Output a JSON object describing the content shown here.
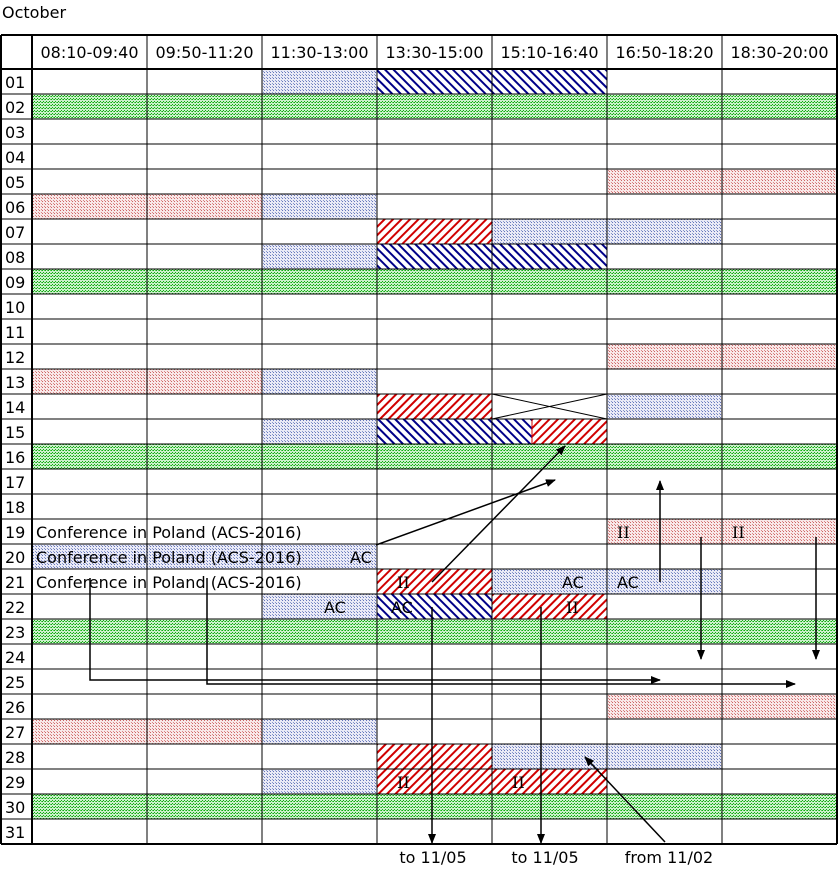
{
  "month": "October",
  "time_slots": [
    "08:10-09:40",
    "09:50-11:20",
    "11:30-13:00",
    "13:30-15:00",
    "15:10-16:40",
    "16:50-18:20",
    "18:30-20:00"
  ],
  "days": [
    "01",
    "02",
    "03",
    "04",
    "05",
    "06",
    "07",
    "08",
    "09",
    "10",
    "11",
    "12",
    "13",
    "14",
    "15",
    "16",
    "17",
    "18",
    "19",
    "20",
    "21",
    "22",
    "23",
    "24",
    "25",
    "26",
    "27",
    "28",
    "29",
    "30",
    "31"
  ],
  "legend_colors": {
    "weekend_green": "#00aa00",
    "pink_dots": "#cc6666",
    "blue_dots": "#6677bb",
    "red_hatch": "#d00000",
    "blue_hatch": "#000088"
  },
  "fills": [
    {
      "day": "01",
      "slots": [
        2
      ],
      "style": "bluedot"
    },
    {
      "day": "01",
      "slots": [
        3,
        4
      ],
      "style": "bluehatch"
    },
    {
      "day": "02",
      "slots": [
        0,
        1,
        2,
        3,
        4,
        5,
        6
      ],
      "style": "green"
    },
    {
      "day": "05",
      "slots": [
        5,
        6
      ],
      "style": "pinkdot"
    },
    {
      "day": "06",
      "slots": [
        0,
        1
      ],
      "style": "pinkdot"
    },
    {
      "day": "06",
      "slots": [
        2
      ],
      "style": "bluedot"
    },
    {
      "day": "07",
      "slots": [
        3
      ],
      "style": "redhatch"
    },
    {
      "day": "07",
      "slots": [
        4,
        5
      ],
      "style": "bluedot"
    },
    {
      "day": "08",
      "slots": [
        2
      ],
      "style": "bluedot"
    },
    {
      "day": "08",
      "slots": [
        3,
        4
      ],
      "style": "bluehatch"
    },
    {
      "day": "09",
      "slots": [
        0,
        1,
        2,
        3,
        4,
        5,
        6
      ],
      "style": "green"
    },
    {
      "day": "12",
      "slots": [
        5,
        6
      ],
      "style": "pinkdot"
    },
    {
      "day": "13",
      "slots": [
        0,
        1
      ],
      "style": "pinkdot"
    },
    {
      "day": "13",
      "slots": [
        2
      ],
      "style": "bluedot"
    },
    {
      "day": "14",
      "slots": [
        3
      ],
      "style": "redhatch"
    },
    {
      "day": "14",
      "slots": [
        5
      ],
      "style": "bluedot"
    },
    {
      "day": "15",
      "slots": [
        2
      ],
      "style": "bluedot"
    },
    {
      "day": "15",
      "slots": [
        3
      ],
      "style": "bluehatch"
    },
    {
      "day": "16",
      "slots": [
        0,
        1,
        2,
        3,
        4,
        5,
        6
      ],
      "style": "green"
    },
    {
      "day": "19",
      "slots": [
        5,
        6
      ],
      "style": "pinkdot"
    },
    {
      "day": "20",
      "slots": [
        0,
        1,
        2
      ],
      "style": "bluedot"
    },
    {
      "day": "21",
      "slots": [
        3
      ],
      "style": "redhatch"
    },
    {
      "day": "21",
      "slots": [
        4,
        5
      ],
      "style": "bluedot"
    },
    {
      "day": "22",
      "slots": [
        2
      ],
      "style": "bluedot"
    },
    {
      "day": "22",
      "slots": [
        3
      ],
      "style": "bluehatch"
    },
    {
      "day": "22",
      "slots": [
        4
      ],
      "style": "redhatch"
    },
    {
      "day": "23",
      "slots": [
        0,
        1,
        2,
        3,
        4,
        5,
        6
      ],
      "style": "green"
    },
    {
      "day": "26",
      "slots": [
        5,
        6
      ],
      "style": "pinkdot"
    },
    {
      "day": "27",
      "slots": [
        0,
        1
      ],
      "style": "pinkdot"
    },
    {
      "day": "27",
      "slots": [
        2
      ],
      "style": "bluedot"
    },
    {
      "day": "28",
      "slots": [
        3
      ],
      "style": "redhatch"
    },
    {
      "day": "28",
      "slots": [
        4,
        5
      ],
      "style": "bluedot"
    },
    {
      "day": "29",
      "slots": [
        2
      ],
      "style": "bluedot"
    },
    {
      "day": "29",
      "slots": [
        3,
        4
      ],
      "style": "redhatch"
    },
    {
      "day": "30",
      "slots": [
        0,
        1,
        2,
        3,
        4,
        5,
        6
      ],
      "style": "green"
    }
  ],
  "cell_texts": [
    {
      "day": "19",
      "slot": 0,
      "text": "Conference in Poland (ACS-2016)",
      "font": "sans"
    },
    {
      "day": "20",
      "slot": 0,
      "text": "Conference in Poland (ACS-2016)",
      "font": "sans"
    },
    {
      "day": "20",
      "slot": 2,
      "text": "AC",
      "font": "sans"
    },
    {
      "day": "21",
      "slot": 0,
      "text": "Conference in Poland (ACS-2016)",
      "font": "sans"
    },
    {
      "day": "19",
      "slot": 5,
      "text": "II",
      "font": "serif"
    },
    {
      "day": "19",
      "slot": 6,
      "text": "II",
      "font": "serif"
    },
    {
      "day": "21",
      "slot": 3,
      "text": "II",
      "font": "serif"
    },
    {
      "day": "21",
      "slot": 4,
      "text": "AC",
      "font": "sans"
    },
    {
      "day": "21",
      "slot": 5,
      "text": "AC",
      "font": "sans"
    },
    {
      "day": "22",
      "slot": 2,
      "text": "AC",
      "font": "sans"
    },
    {
      "day": "22",
      "slot": 3,
      "text": "AC",
      "font": "sans"
    },
    {
      "day": "22",
      "slot": 4,
      "text": "II",
      "font": "serif"
    },
    {
      "day": "29",
      "slot": 3,
      "text": "II",
      "font": "serif"
    },
    {
      "day": "29",
      "slot": 4,
      "text": "II",
      "font": "serif"
    }
  ],
  "notes": [
    "to 11/05",
    "to 11/05",
    "from 11/02"
  ]
}
